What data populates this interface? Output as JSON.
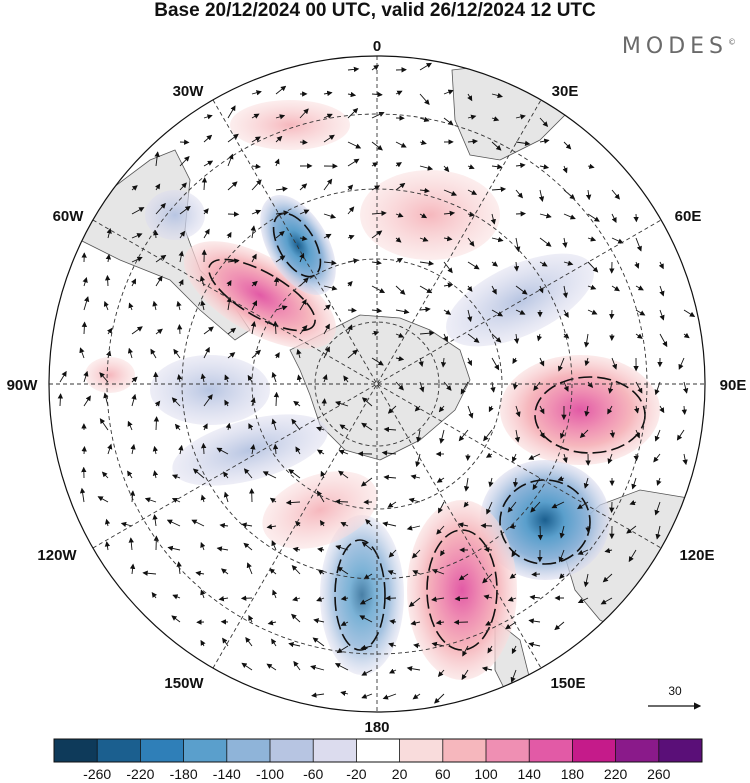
{
  "title": "Base 20/12/2024 00 UTC, valid 26/12/2024 12 UTC",
  "logo": "MODES",
  "logo_mark": "©",
  "map": {
    "projection": "south-polar-stereographic",
    "longitude_labels": {
      "top": "0",
      "top_left": "30W",
      "top_right": "30E",
      "left_upper": "60W",
      "right_upper": "60E",
      "left": "90W",
      "right": "90E",
      "left_lower": "120W",
      "right_lower": "120E",
      "bottom_left": "150W",
      "bottom_right": "150E",
      "bottom": "180"
    },
    "reference_vector": {
      "label": "30"
    },
    "anomaly_centers": [
      {
        "name": "positive-anomaly-south-atlantic",
        "sign": "+",
        "peak": 140
      },
      {
        "name": "negative-anomaly-drake",
        "sign": "-",
        "peak": -140
      },
      {
        "name": "positive-anomaly-indian",
        "sign": "+",
        "peak": 120
      },
      {
        "name": "negative-anomaly-south-australia",
        "sign": "-",
        "peak": -200
      },
      {
        "name": "positive-anomaly-tasman",
        "sign": "+",
        "peak": 180
      },
      {
        "name": "negative-anomaly-pacific",
        "sign": "-",
        "peak": -140
      },
      {
        "name": "positive-anomaly-south-pacific",
        "sign": "+",
        "peak": 100
      }
    ]
  },
  "colorbar": {
    "labels": [
      "-260",
      "-220",
      "-180",
      "-140",
      "-100",
      "-60",
      "-20",
      "20",
      "60",
      "100",
      "140",
      "180",
      "220",
      "260"
    ],
    "colors": [
      "#0e3a5a",
      "#1b5f8f",
      "#2f7fb8",
      "#5a9fcc",
      "#8fb4d9",
      "#b7c5e2",
      "#dcdcee",
      "#ffffff",
      "#f9dcdc",
      "#f6b7bd",
      "#ef8fb3",
      "#e25aa6",
      "#c51b8a",
      "#8a1a8a",
      "#5a0f78"
    ]
  }
}
